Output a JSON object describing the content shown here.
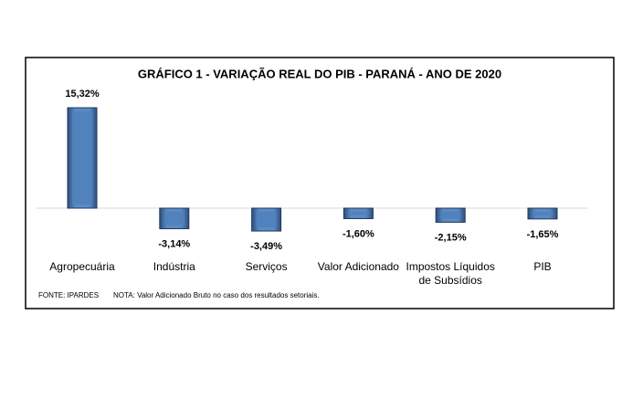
{
  "chart_data": {
    "type": "bar",
    "title": "GRÁFICO 1 - VARIAÇÃO REAL DO PIB - PARANÁ - ANO DE 2020",
    "categories": [
      "Agropecuária",
      "Indústria",
      "Serviços",
      "Valor Adicionado",
      "Impostos Líquidos de Subsídios",
      "PIB"
    ],
    "values": [
      15.32,
      -3.14,
      -3.49,
      -1.6,
      -2.15,
      -1.65
    ],
    "value_labels": [
      "15,32%",
      "-3,14%",
      "-3,49%",
      "-1,60%",
      "-2,15%",
      "-1,65%"
    ],
    "color": "#4f81bd",
    "source": "FONTE: IPARDES",
    "note": "NOTA: Valor Adicionado Bruto no caso dos resultados setoriais."
  }
}
